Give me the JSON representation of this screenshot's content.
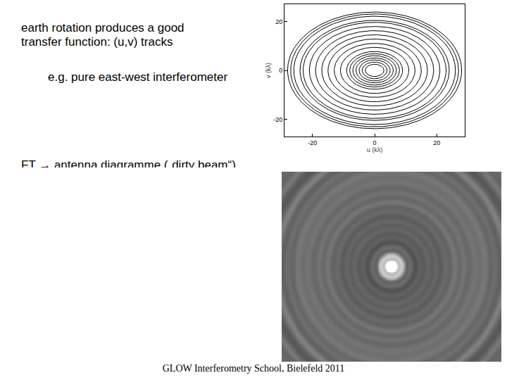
{
  "slide": {
    "text": [
      "earth rotation produces a good",
      "transfer function: (u,v) tracks"
    ],
    "example": "e.g. pure east-west interferometer",
    "ft_line": "FT → antenna diagramme („dirty beam“)",
    "footer": "GLOW Interferometry School, Bielefeld 2011"
  },
  "chart_data": {
    "type": "line",
    "xlabel": "u (kλ)",
    "ylabel": "v (kλ)",
    "xlim": [
      -29,
      29
    ],
    "ylim": [
      -27,
      27
    ],
    "xticks": [
      -20,
      0,
      20
    ],
    "yticks": [
      -20,
      0,
      20
    ],
    "color": "#000000",
    "tracks": [
      {
        "u": 3,
        "v": 2.5
      },
      {
        "u": 4,
        "v": 3.4
      },
      {
        "u": 5,
        "v": 4.3
      },
      {
        "u": 6,
        "v": 5.1
      },
      {
        "u": 7,
        "v": 6
      },
      {
        "u": 8,
        "v": 6.8
      },
      {
        "u": 9,
        "v": 7.7
      },
      {
        "u": 11,
        "v": 9.4
      },
      {
        "u": 13,
        "v": 11
      },
      {
        "u": 15,
        "v": 12.8
      },
      {
        "u": 17,
        "v": 14.5
      },
      {
        "u": 19,
        "v": 16.2
      },
      {
        "u": 21,
        "v": 17.9
      },
      {
        "u": 23,
        "v": 19.6
      },
      {
        "u": 24,
        "v": 20.4
      },
      {
        "u": 26,
        "v": 22.1
      },
      {
        "u": 27,
        "v": 23
      },
      {
        "u": 28,
        "v": 23.8
      }
    ]
  }
}
